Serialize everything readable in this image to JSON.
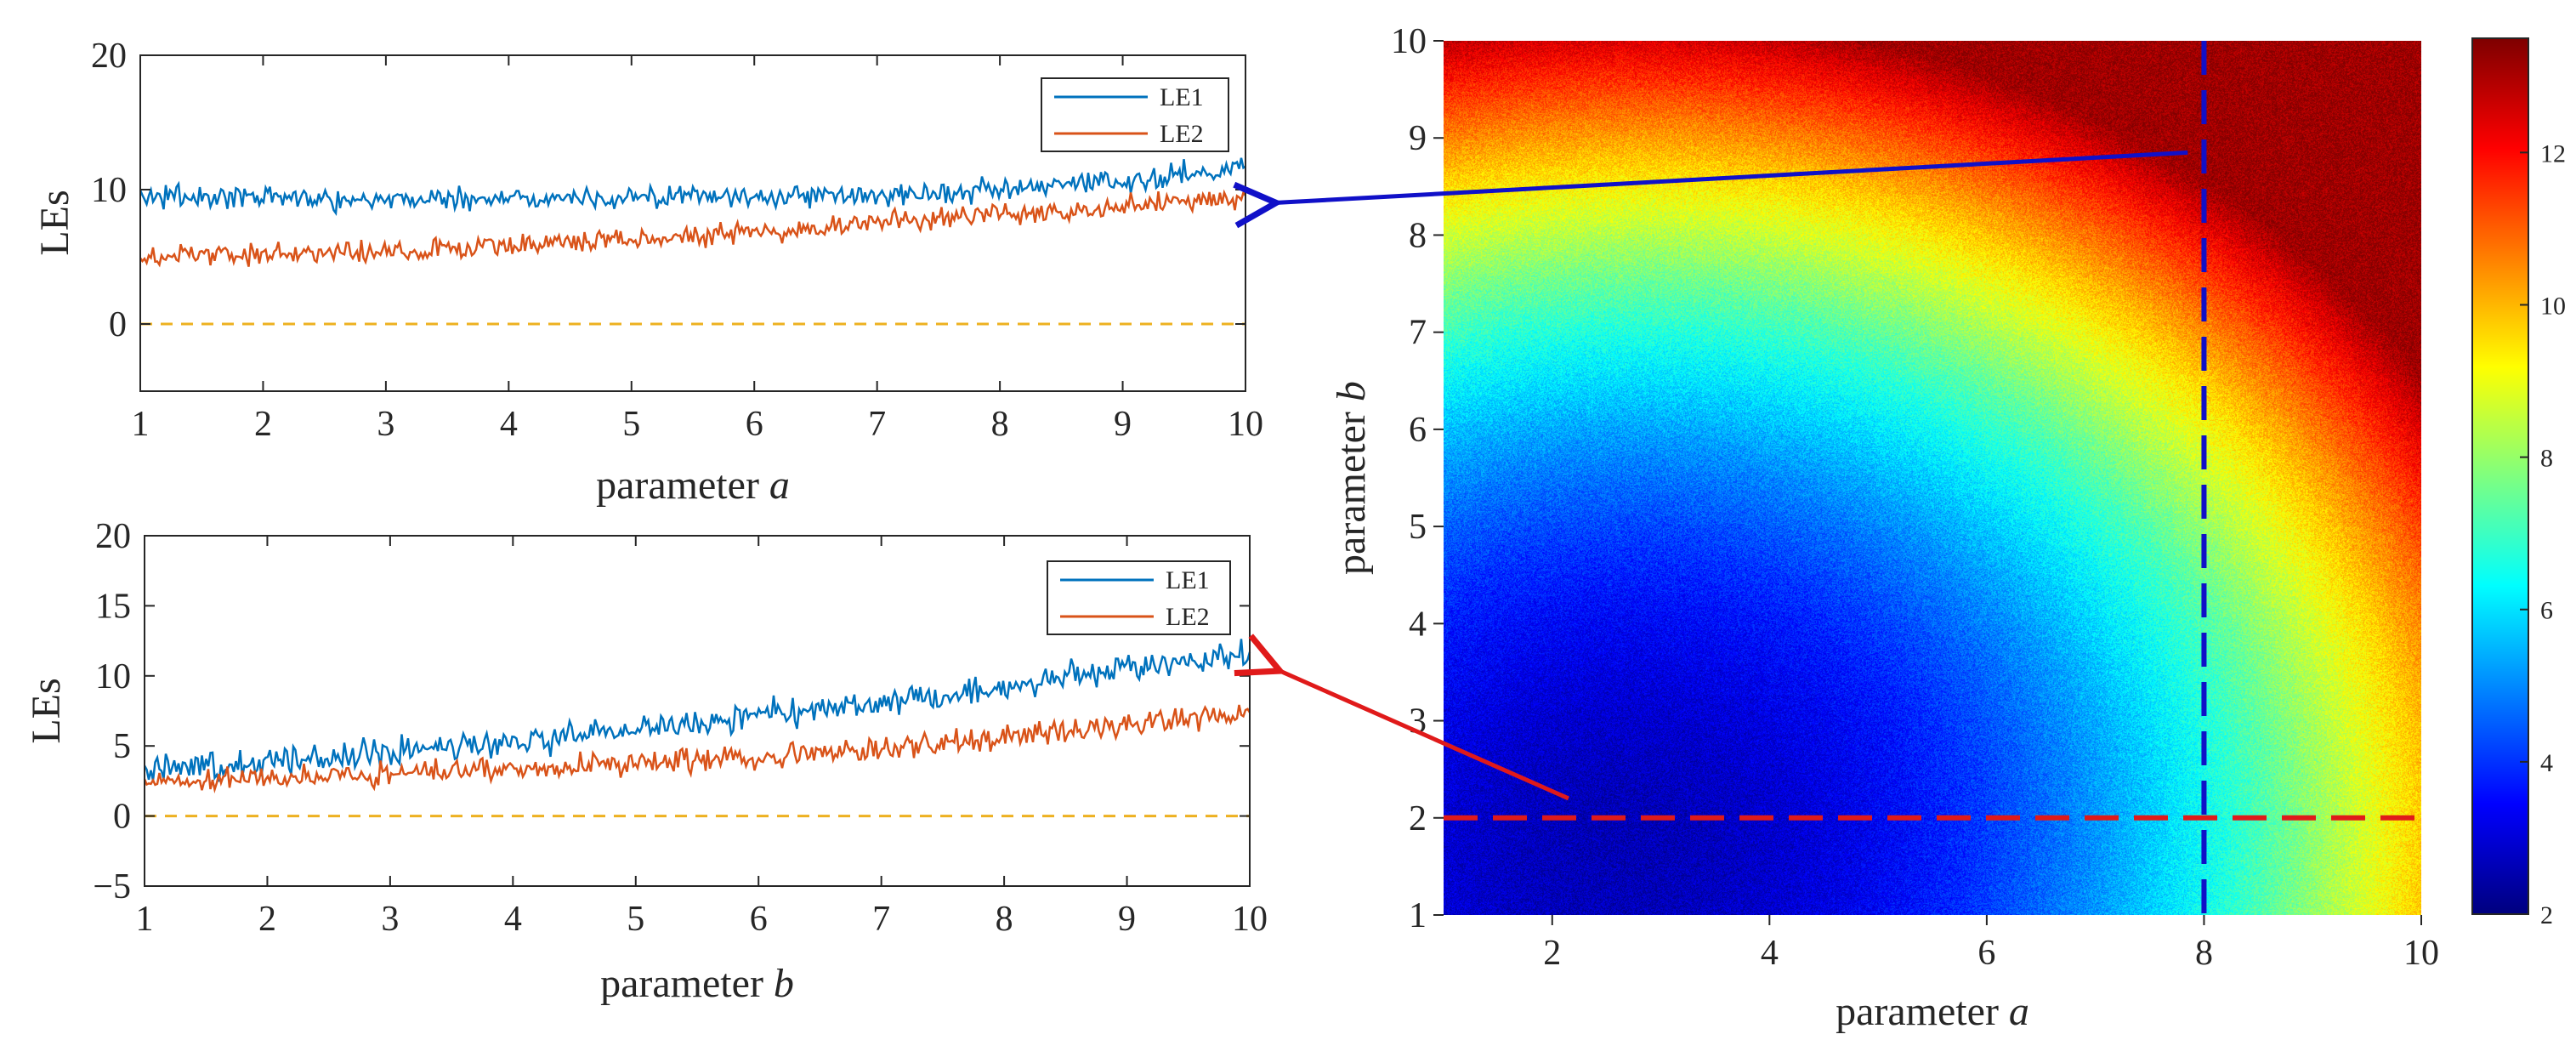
{
  "chart_data": [
    {
      "id": "top",
      "type": "line",
      "ylabel": "LEs",
      "xlabel_prefix": "parameter ",
      "xlabel_var": "a",
      "xlim": [
        1,
        10
      ],
      "ylim": [
        -5,
        20
      ],
      "xticks": [
        1,
        2,
        3,
        4,
        5,
        6,
        7,
        8,
        9,
        10
      ],
      "yticks": [
        0,
        10,
        20
      ],
      "ytick_labels": [
        "0",
        "10",
        "20"
      ],
      "legend_position": "top-right",
      "series": [
        {
          "name": "LE1",
          "color": "#0072BD",
          "trend_x": [
            1,
            3,
            5,
            7,
            8,
            9,
            10
          ],
          "trend_y": [
            9.5,
            9.3,
            9.4,
            9.6,
            9.9,
            10.6,
            11.8
          ],
          "noise": 0.6
        },
        {
          "name": "LE2",
          "color": "#D95319",
          "trend_x": [
            1,
            3,
            5,
            7,
            8,
            9,
            10
          ],
          "trend_y": [
            5.0,
            5.4,
            6.3,
            7.5,
            8.2,
            8.8,
            9.4
          ],
          "noise": 0.6
        }
      ],
      "zero_line": {
        "y": 0,
        "color": "#EDB120",
        "style": "dashed"
      }
    },
    {
      "id": "bottom",
      "type": "line",
      "ylabel": "LEs",
      "xlabel_prefix": "parameter ",
      "xlabel_var": "b",
      "xlim": [
        1,
        10
      ],
      "ylim": [
        -5,
        20
      ],
      "xticks": [
        1,
        2,
        3,
        4,
        5,
        6,
        7,
        8,
        9,
        10
      ],
      "yticks": [
        -5,
        0,
        5,
        10,
        15,
        20
      ],
      "ytick_labels": [
        "−5",
        "0",
        "5",
        "10",
        "15",
        "20"
      ],
      "legend_position": "top-right",
      "series": [
        {
          "name": "LE1",
          "color": "#0072BD",
          "trend_x": [
            1,
            2,
            3,
            4,
            5,
            6,
            7,
            8,
            9,
            10
          ],
          "trend_y": [
            3.5,
            3.9,
            4.5,
            5.2,
            6.2,
            7.2,
            8.1,
            9.2,
            10.4,
            11.6
          ],
          "noise": 0.7
        },
        {
          "name": "LE2",
          "color": "#D95319",
          "trend_x": [
            1,
            2,
            3,
            4,
            5,
            6,
            7,
            8,
            9,
            10
          ],
          "trend_y": [
            2.3,
            2.7,
            3.0,
            3.3,
            3.8,
            4.2,
            4.8,
            5.6,
            6.5,
            7.2
          ],
          "noise": 0.6
        }
      ],
      "zero_line": {
        "y": 0,
        "color": "#EDB120",
        "style": "dashed"
      }
    },
    {
      "id": "heatmap",
      "type": "heatmap",
      "xlabel_prefix": "parameter ",
      "xlabel_var": "a",
      "ylabel_prefix": "parameter ",
      "ylabel_var": "b",
      "xlim": [
        1,
        10
      ],
      "ylim": [
        1,
        10
      ],
      "xticks": [
        2,
        4,
        6,
        8,
        10
      ],
      "yticks": [
        1,
        2,
        3,
        4,
        5,
        6,
        7,
        8,
        9,
        10
      ],
      "colorbar": {
        "range": [
          2,
          13.5
        ],
        "ticks": [
          2,
          4,
          6,
          8,
          10,
          12
        ],
        "colormap": "jet"
      },
      "corner_values": {
        "a1_b1": 3.0,
        "a10_b1": 12.0,
        "a1_b10": 12.0,
        "a10_b10": 12.5,
        "min_region": {
          "a": 3.0,
          "b": 2.0,
          "value": 2.5
        }
      },
      "cut_lines": [
        {
          "axis": "a",
          "value": 8,
          "color": "#1010C8",
          "style": "dashed"
        },
        {
          "axis": "b",
          "value": 2,
          "color": "#E01A1A",
          "style": "dashed"
        }
      ],
      "arrows": [
        {
          "color": "#1010C8",
          "from_data": {
            "a": 7.85,
            "b": 8.85
          },
          "to_plot": "top",
          "to_x": 10,
          "to_y": 9.0
        },
        {
          "color": "#E01A1A",
          "from_data": {
            "a": 2.15,
            "b": 2.2
          },
          "to_plot": "bottom",
          "to_x": 10,
          "to_y": 10.5
        }
      ]
    }
  ]
}
